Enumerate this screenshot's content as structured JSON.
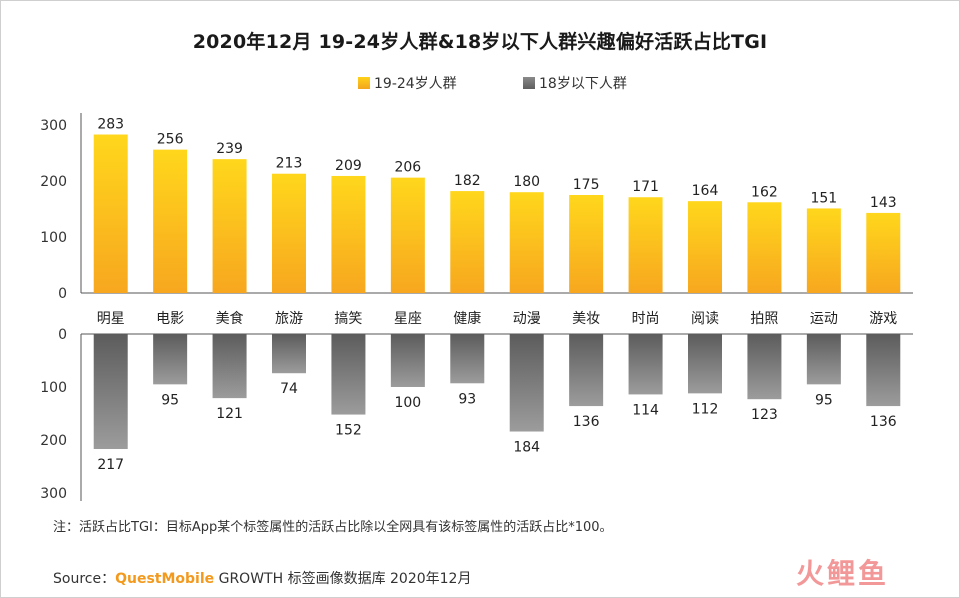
{
  "chart_data": {
    "type": "bar",
    "title": "2020年12月 19-24岁人群&18岁以下人群兴趣偏好活跃占比TGI",
    "categories": [
      "明星",
      "电影",
      "美食",
      "旅游",
      "搞笑",
      "星座",
      "健康",
      "动漫",
      "美妆",
      "时尚",
      "阅读",
      "拍照",
      "运动",
      "游戏"
    ],
    "series": [
      {
        "name": "19-24岁人群",
        "values": [
          283,
          256,
          239,
          213,
          209,
          206,
          182,
          180,
          175,
          171,
          164,
          162,
          151,
          143
        ],
        "color": "#ffc20e"
      },
      {
        "name": "18岁以下人群",
        "values": [
          217,
          95,
          121,
          74,
          152,
          100,
          93,
          184,
          136,
          114,
          112,
          123,
          95,
          136
        ],
        "color": "#707070"
      }
    ],
    "top_axis": {
      "ylim": [
        0,
        300
      ],
      "ticks": [
        0,
        100,
        200,
        300
      ]
    },
    "bottom_axis": {
      "ylim": [
        0,
        300
      ],
      "ticks": [
        0,
        100,
        200,
        300
      ],
      "inverted": true
    },
    "legend_position": "top-center",
    "grid": false
  },
  "note": "注：活跃占比TGI：目标App某个标签属性的活跃占比除以全网具有该标签属性的活跃占比*100。",
  "source": {
    "prefix": "Source：",
    "brand": "QuestMobile",
    "rest": " GROWTH 标签画像数据库 2020年12月"
  },
  "logo_text": "火鲤鱼"
}
